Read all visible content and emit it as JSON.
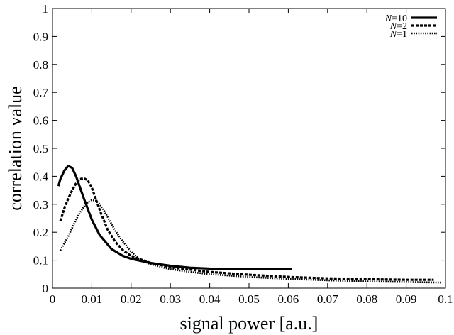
{
  "chart_data": {
    "type": "line",
    "xlabel": "signal power [a.u.]",
    "ylabel": "correlation value",
    "xlim": [
      0,
      0.1
    ],
    "ylim": [
      0,
      1
    ],
    "xticks": [
      "0",
      "0.01",
      "0.02",
      "0.03",
      "0.04",
      "0.05",
      "0.06",
      "0.07",
      "0.08",
      "0.09",
      "0.1"
    ],
    "yticks": [
      "0",
      "0.1",
      "0.2",
      "0.3",
      "0.4",
      "0.5",
      "0.6",
      "0.7",
      "0.8",
      "0.9",
      "1"
    ],
    "legend_position": "top-right",
    "grid": false,
    "series": [
      {
        "name": "N=10",
        "style": "solid",
        "x": [
          0.0015,
          0.002,
          0.003,
          0.004,
          0.005,
          0.006,
          0.008,
          0.01,
          0.012,
          0.015,
          0.018,
          0.02,
          0.025,
          0.03,
          0.035,
          0.04,
          0.05,
          0.061
        ],
        "y": [
          0.365,
          0.39,
          0.42,
          0.437,
          0.43,
          0.4,
          0.32,
          0.245,
          0.19,
          0.14,
          0.115,
          0.105,
          0.09,
          0.08,
          0.073,
          0.07,
          0.068,
          0.068
        ]
      },
      {
        "name": "N=2",
        "style": "dashed",
        "x": [
          0.002,
          0.003,
          0.004,
          0.005,
          0.006,
          0.007,
          0.008,
          0.009,
          0.01,
          0.011,
          0.012,
          0.014,
          0.016,
          0.018,
          0.02,
          0.025,
          0.03,
          0.04,
          0.05,
          0.06,
          0.07,
          0.08,
          0.09,
          0.097
        ],
        "y": [
          0.24,
          0.285,
          0.32,
          0.35,
          0.375,
          0.39,
          0.393,
          0.385,
          0.36,
          0.32,
          0.28,
          0.21,
          0.165,
          0.135,
          0.115,
          0.09,
          0.075,
          0.058,
          0.048,
          0.04,
          0.035,
          0.032,
          0.03,
          0.03
        ]
      },
      {
        "name": "N=1",
        "style": "dotted",
        "x": [
          0.002,
          0.003,
          0.004,
          0.005,
          0.006,
          0.007,
          0.008,
          0.009,
          0.01,
          0.011,
          0.012,
          0.013,
          0.014,
          0.016,
          0.018,
          0.02,
          0.022,
          0.025,
          0.03,
          0.035,
          0.04,
          0.05,
          0.06,
          0.07,
          0.08,
          0.09,
          0.099
        ],
        "y": [
          0.135,
          0.16,
          0.185,
          0.215,
          0.245,
          0.27,
          0.292,
          0.307,
          0.315,
          0.313,
          0.3,
          0.28,
          0.255,
          0.205,
          0.165,
          0.13,
          0.105,
          0.085,
          0.068,
          0.058,
          0.05,
          0.04,
          0.033,
          0.028,
          0.024,
          0.022,
          0.02
        ]
      }
    ]
  }
}
